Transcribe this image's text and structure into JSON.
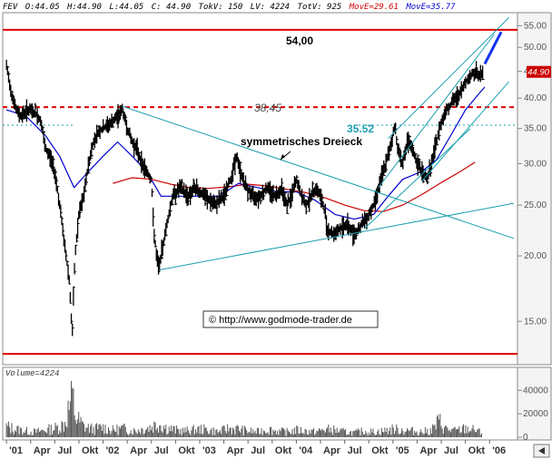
{
  "header": {
    "symbol": "FEV",
    "open": "O:44.05",
    "high": "H:44.90",
    "low": "L:44.05",
    "close": "C: 44.90",
    "tokv": "TokV: 150",
    "lv": "LV: 4224",
    "totv": "TotV: 925",
    "mova": "MovE=29.61",
    "movb": "MovE=35.77"
  },
  "colors": {
    "price": "#000000",
    "ma_long": "#cc0000",
    "ma_short": "#0000cc",
    "channel": "#1a9faf",
    "resistance": "#dd0000",
    "projection": "#1133ee",
    "volume": "#555555",
    "price_tag_bg": "#cc0000"
  },
  "chart_data": {
    "type": "line",
    "x_ticks": [
      "'01",
      "Apr",
      "Jul",
      "Okt",
      "'02",
      "Apr",
      "Jul",
      "Okt",
      "'03",
      "Apr",
      "Jul",
      "Okt",
      "'04",
      "Apr",
      "Jul",
      "Okt",
      "'05",
      "Apr",
      "Jul",
      "Okt",
      "'06"
    ],
    "y_ticks": [
      "55.00",
      "50.00",
      "45.00",
      "40.00",
      "35.00",
      "30.00",
      "25.00",
      "20.00",
      "15.00"
    ],
    "y_scale": "log",
    "ylim": [
      12.5,
      58
    ],
    "current_price_label": "44.90",
    "annotations": {
      "top_level": "54,00",
      "dashed_level": "38,45",
      "breakout_level": "35.52",
      "pattern": "symmetrisches Dreieck",
      "copyright": "© http://www.godmode-trader.de"
    },
    "levels": {
      "top": 54.0,
      "dashed": 38.45,
      "breakout": 35.52,
      "bottom": 13.0
    },
    "price_series": {
      "name": "",
      "points": [
        [
          2001.0,
          46
        ],
        [
          2001.05,
          41
        ],
        [
          2001.1,
          38
        ],
        [
          2001.15,
          37
        ],
        [
          2001.22,
          38
        ],
        [
          2001.3,
          37.5
        ],
        [
          2001.36,
          36
        ],
        [
          2001.4,
          32
        ],
        [
          2001.45,
          31
        ],
        [
          2001.5,
          29
        ],
        [
          2001.55,
          25
        ],
        [
          2001.6,
          21
        ],
        [
          2001.65,
          18
        ],
        [
          2001.68,
          14
        ],
        [
          2001.71,
          20
        ],
        [
          2001.75,
          24
        ],
        [
          2001.8,
          26
        ],
        [
          2001.85,
          30
        ],
        [
          2001.9,
          33
        ],
        [
          2001.95,
          34.5
        ],
        [
          2002.0,
          35
        ],
        [
          2002.05,
          35.5
        ],
        [
          2002.1,
          36
        ],
        [
          2002.15,
          37
        ],
        [
          2002.2,
          38
        ],
        [
          2002.25,
          35
        ],
        [
          2002.3,
          33
        ],
        [
          2002.35,
          32
        ],
        [
          2002.4,
          30
        ],
        [
          2002.45,
          29
        ],
        [
          2002.5,
          28
        ],
        [
          2002.52,
          23
        ],
        [
          2002.55,
          20
        ],
        [
          2002.58,
          19
        ],
        [
          2002.62,
          21
        ],
        [
          2002.68,
          24
        ],
        [
          2002.72,
          26
        ],
        [
          2002.8,
          27
        ],
        [
          2002.88,
          26
        ],
        [
          2002.95,
          27
        ],
        [
          2003.05,
          26
        ],
        [
          2003.15,
          25
        ],
        [
          2003.25,
          26
        ],
        [
          2003.32,
          28
        ],
        [
          2003.38,
          31
        ],
        [
          2003.42,
          29
        ],
        [
          2003.48,
          27
        ],
        [
          2003.55,
          26
        ],
        [
          2003.62,
          26
        ],
        [
          2003.7,
          27
        ],
        [
          2003.78,
          26
        ],
        [
          2003.85,
          27
        ],
        [
          2003.9,
          25
        ],
        [
          2003.95,
          26
        ],
        [
          2004.0,
          28
        ],
        [
          2004.05,
          26
        ],
        [
          2004.1,
          25
        ],
        [
          2004.15,
          26
        ],
        [
          2004.2,
          27
        ],
        [
          2004.25,
          26
        ],
        [
          2004.3,
          24
        ],
        [
          2004.32,
          22.5
        ],
        [
          2004.38,
          22
        ],
        [
          2004.45,
          22.5
        ],
        [
          2004.52,
          23
        ],
        [
          2004.6,
          22
        ],
        [
          2004.68,
          23
        ],
        [
          2004.75,
          24
        ],
        [
          2004.8,
          25
        ],
        [
          2004.85,
          27
        ],
        [
          2004.9,
          29
        ],
        [
          2004.95,
          31
        ],
        [
          2005.0,
          34
        ],
        [
          2005.02,
          35.5
        ],
        [
          2005.05,
          32
        ],
        [
          2005.1,
          30
        ],
        [
          2005.15,
          33
        ],
        [
          2005.2,
          32
        ],
        [
          2005.25,
          30
        ],
        [
          2005.3,
          29
        ],
        [
          2005.35,
          28
        ],
        [
          2005.4,
          30
        ],
        [
          2005.45,
          33
        ],
        [
          2005.5,
          36
        ],
        [
          2005.55,
          38
        ],
        [
          2005.6,
          39
        ],
        [
          2005.65,
          40
        ],
        [
          2005.7,
          41
        ],
        [
          2005.75,
          43
        ],
        [
          2005.8,
          44
        ],
        [
          2005.85,
          45
        ],
        [
          2005.9,
          44
        ],
        [
          2005.93,
          44.9
        ]
      ]
    },
    "ma_short": {
      "name": "",
      "points": [
        [
          2001.0,
          38
        ],
        [
          2001.2,
          37
        ],
        [
          2001.4,
          34
        ],
        [
          2001.55,
          31
        ],
        [
          2001.7,
          27
        ],
        [
          2001.85,
          29
        ],
        [
          2002.0,
          31
        ],
        [
          2002.15,
          33
        ],
        [
          2002.3,
          31
        ],
        [
          2002.45,
          29
        ],
        [
          2002.6,
          26
        ],
        [
          2002.8,
          26
        ],
        [
          2003.0,
          26
        ],
        [
          2003.2,
          26
        ],
        [
          2003.4,
          27.5
        ],
        [
          2003.6,
          27
        ],
        [
          2003.8,
          26.5
        ],
        [
          2004.0,
          26.5
        ],
        [
          2004.2,
          25.5
        ],
        [
          2004.4,
          24
        ],
        [
          2004.6,
          23.5
        ],
        [
          2004.8,
          24
        ],
        [
          2004.95,
          26
        ],
        [
          2005.1,
          28
        ],
        [
          2005.3,
          29
        ],
        [
          2005.45,
          30.5
        ],
        [
          2005.6,
          34
        ],
        [
          2005.75,
          38
        ],
        [
          2005.9,
          41
        ],
        [
          2005.95,
          42
        ]
      ]
    },
    "ma_long": {
      "name": "",
      "points": [
        [
          2002.1,
          27.5
        ],
        [
          2002.3,
          28.2
        ],
        [
          2002.5,
          28.0
        ],
        [
          2002.7,
          27.4
        ],
        [
          2002.9,
          27.0
        ],
        [
          2003.1,
          26.9
        ],
        [
          2003.3,
          27.1
        ],
        [
          2003.5,
          27.4
        ],
        [
          2003.7,
          27.2
        ],
        [
          2003.9,
          26.8
        ],
        [
          2004.1,
          26.4
        ],
        [
          2004.3,
          25.8
        ],
        [
          2004.5,
          25.0
        ],
        [
          2004.7,
          24.4
        ],
        [
          2004.9,
          24.3
        ],
        [
          2005.1,
          25.0
        ],
        [
          2005.3,
          26.2
        ],
        [
          2005.5,
          27.6
        ],
        [
          2005.7,
          29.0
        ],
        [
          2005.85,
          30.2
        ]
      ]
    },
    "trendlines": [
      {
        "role": "triangle-upper",
        "from": [
          2002.2,
          38.6
        ],
        "to": [
          2006.25,
          21.6
        ]
      },
      {
        "role": "triangle-lower",
        "from": [
          2002.58,
          18.8
        ],
        "to": [
          2006.25,
          25.2
        ]
      },
      {
        "role": "channel-upper",
        "from": [
          2004.95,
          33.5
        ],
        "to": [
          2006.2,
          57
        ]
      },
      {
        "role": "channel-mid",
        "from": [
          2004.85,
          27.0
        ],
        "to": [
          2006.05,
          53
        ]
      },
      {
        "role": "channel-lower",
        "from": [
          2005.3,
          27.8
        ],
        "to": [
          2006.2,
          43
        ]
      },
      {
        "role": "support",
        "from": [
          2004.7,
          22.5
        ],
        "to": [
          2005.8,
          35.0
        ]
      }
    ],
    "projection": {
      "from": [
        2005.95,
        46.5
      ],
      "to": [
        2006.12,
        53.5
      ]
    },
    "volume": {
      "label": "Volume=4224",
      "y_ticks": [
        "40000",
        "20000",
        "0"
      ],
      "ylim": [
        0,
        48000
      ],
      "bars": [
        [
          2001.0,
          12000
        ],
        [
          2001.1,
          9000
        ],
        [
          2001.2,
          7000
        ],
        [
          2001.3,
          6000
        ],
        [
          2001.4,
          8000
        ],
        [
          2001.5,
          10000
        ],
        [
          2001.6,
          15000
        ],
        [
          2001.68,
          46000
        ],
        [
          2001.72,
          22000
        ],
        [
          2001.8,
          12000
        ],
        [
          2001.9,
          9000
        ],
        [
          2002.0,
          11000
        ],
        [
          2002.1,
          8000
        ],
        [
          2002.2,
          10000
        ],
        [
          2002.3,
          7000
        ],
        [
          2002.4,
          9000
        ],
        [
          2002.5,
          12000
        ],
        [
          2002.58,
          16000
        ],
        [
          2002.65,
          11000
        ],
        [
          2002.75,
          8000
        ],
        [
          2002.85,
          7000
        ],
        [
          2003.0,
          9000
        ],
        [
          2003.1,
          8000
        ],
        [
          2003.2,
          6000
        ],
        [
          2003.3,
          10000
        ],
        [
          2003.4,
          9000
        ],
        [
          2003.5,
          7000
        ],
        [
          2003.6,
          6000
        ],
        [
          2003.7,
          9000
        ],
        [
          2003.8,
          7000
        ],
        [
          2003.9,
          6000
        ],
        [
          2004.0,
          8000
        ],
        [
          2004.1,
          7000
        ],
        [
          2004.2,
          6000
        ],
        [
          2004.3,
          9000
        ],
        [
          2004.4,
          8000
        ],
        [
          2004.5,
          6000
        ],
        [
          2004.6,
          5000
        ],
        [
          2004.7,
          7000
        ],
        [
          2004.8,
          6000
        ],
        [
          2004.9,
          7000
        ],
        [
          2005.0,
          9000
        ],
        [
          2005.1,
          8000
        ],
        [
          2005.2,
          7000
        ],
        [
          2005.3,
          6000
        ],
        [
          2005.4,
          8000
        ],
        [
          2005.48,
          18000
        ],
        [
          2005.55,
          9000
        ],
        [
          2005.65,
          7000
        ],
        [
          2005.75,
          10000
        ],
        [
          2005.85,
          8000
        ],
        [
          2005.92,
          5000
        ]
      ]
    }
  }
}
